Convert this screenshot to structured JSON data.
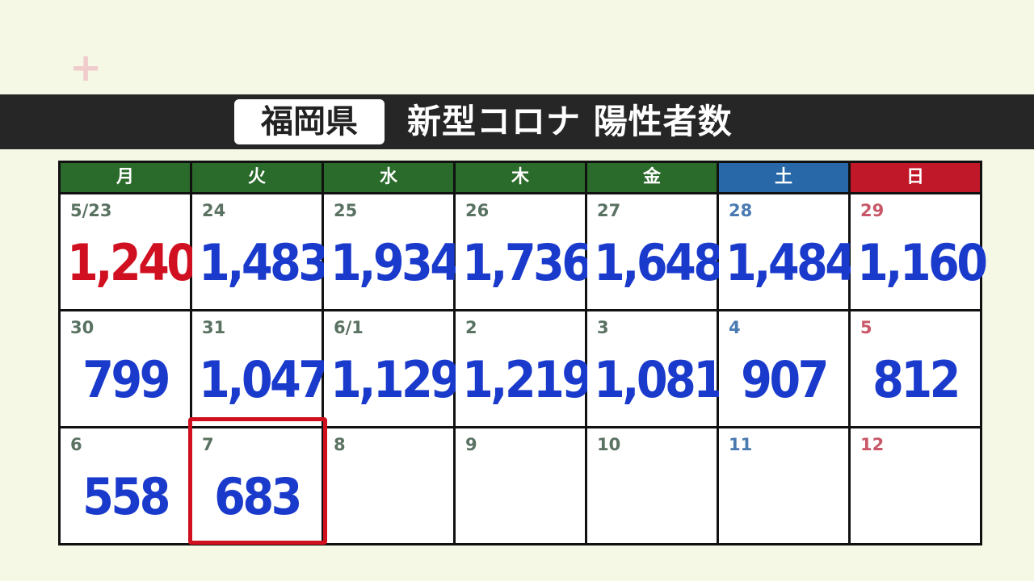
{
  "logo": "+",
  "header": {
    "prefecture": "福岡県",
    "title": "新型コロナ 陽性者数"
  },
  "colors": {
    "weekday_header": "#2a6a2a",
    "saturday_header": "#2868a8",
    "sunday_header": "#c01828",
    "value": "#1a3acc",
    "value_highlight": "#d01020",
    "today_outline": "#d0101e"
  },
  "weekdays": [
    "月",
    "火",
    "水",
    "木",
    "金",
    "土",
    "日"
  ],
  "weeks": [
    [
      {
        "date": "5/23",
        "value": "1,240",
        "red": true
      },
      {
        "date": "24",
        "value": "1,483"
      },
      {
        "date": "25",
        "value": "1,934"
      },
      {
        "date": "26",
        "value": "1,736"
      },
      {
        "date": "27",
        "value": "1,648"
      },
      {
        "date": "28",
        "value": "1,484"
      },
      {
        "date": "29",
        "value": "1,160"
      }
    ],
    [
      {
        "date": "30",
        "value": "799"
      },
      {
        "date": "31",
        "value": "1,047"
      },
      {
        "date": "6/1",
        "value": "1,129"
      },
      {
        "date": "2",
        "value": "1,219"
      },
      {
        "date": "3",
        "value": "1,081"
      },
      {
        "date": "4",
        "value": "907"
      },
      {
        "date": "5",
        "value": "812"
      }
    ],
    [
      {
        "date": "6",
        "value": "558"
      },
      {
        "date": "7",
        "value": "683",
        "today": true
      },
      {
        "date": "8",
        "value": ""
      },
      {
        "date": "9",
        "value": ""
      },
      {
        "date": "10",
        "value": ""
      },
      {
        "date": "11",
        "value": ""
      },
      {
        "date": "12",
        "value": ""
      }
    ]
  ]
}
